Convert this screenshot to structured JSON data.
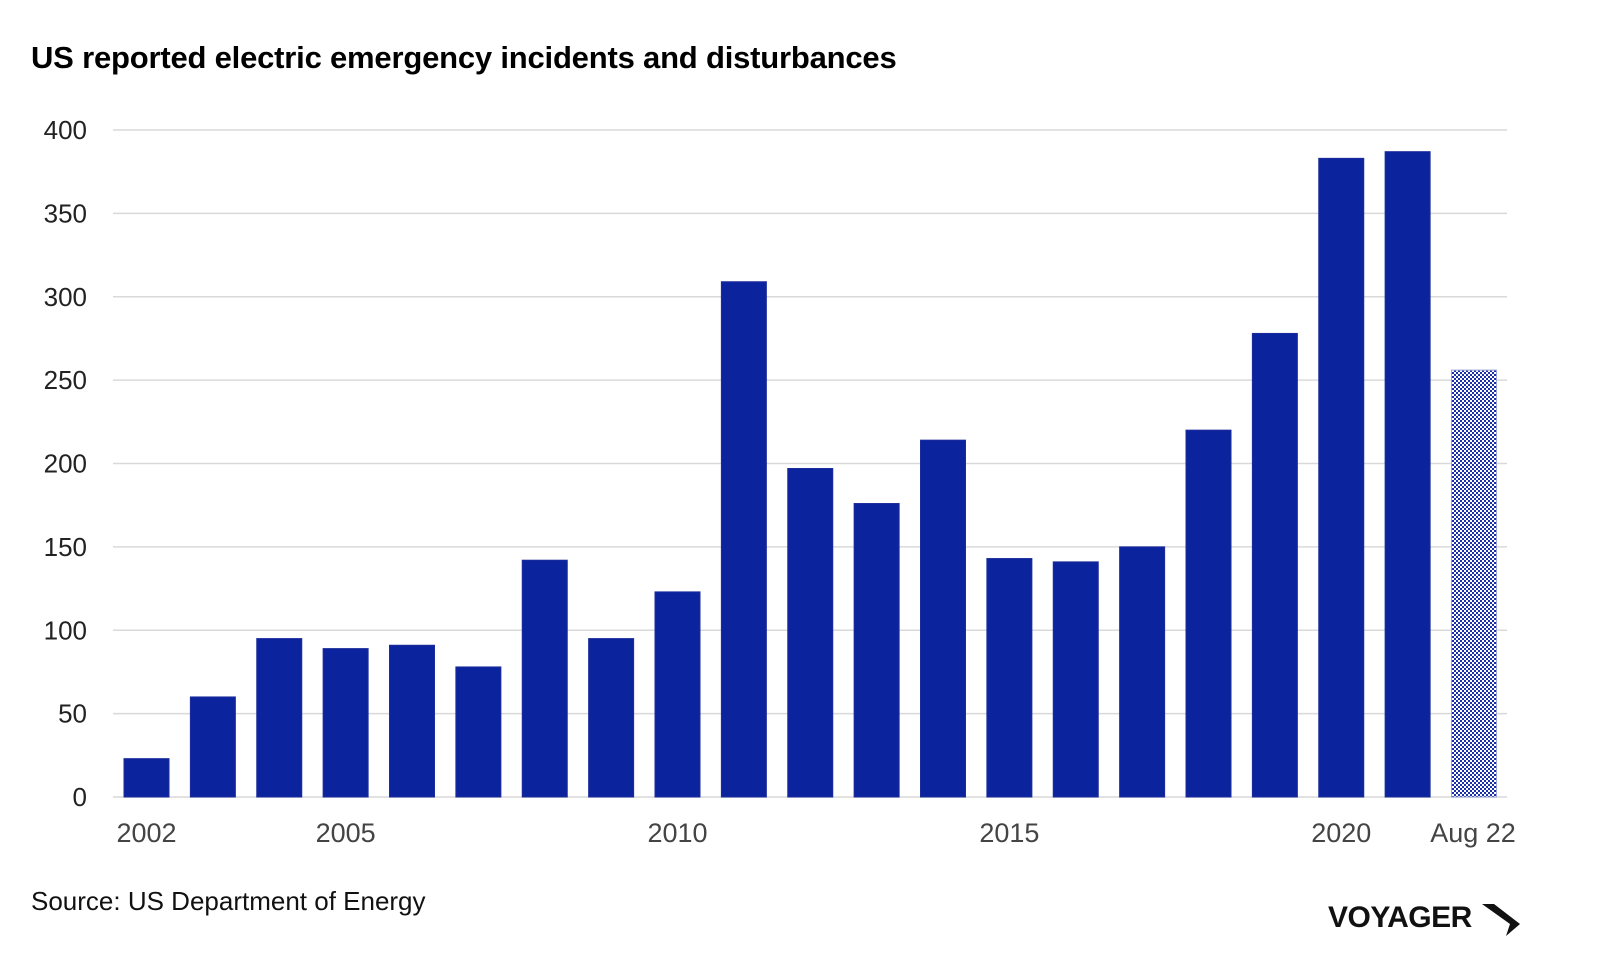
{
  "chart_data": {
    "type": "bar",
    "title": "US reported electric emergency incidents and disturbances",
    "xlabel": "",
    "ylabel": "",
    "ylim": [
      0,
      400
    ],
    "yticks": [
      0,
      50,
      100,
      150,
      200,
      250,
      300,
      350,
      400
    ],
    "grid": true,
    "legend": "none",
    "categories": [
      "2002",
      "2003",
      "2004",
      "2005",
      "2006",
      "2007",
      "2008",
      "2009",
      "2010",
      "2011",
      "2012",
      "2013",
      "2014",
      "2015",
      "2016",
      "2017",
      "2018",
      "2019",
      "2020",
      "2021",
      "Aug 22"
    ],
    "x_tick_labels": [
      {
        "category": "2002",
        "label": "2002"
      },
      {
        "category": "2005",
        "label": "2005"
      },
      {
        "category": "2010",
        "label": "2010"
      },
      {
        "category": "2015",
        "label": "2015"
      },
      {
        "category": "2020",
        "label": "2020"
      },
      {
        "category": "Aug 22",
        "label": "Aug 22"
      }
    ],
    "values": [
      23,
      60,
      95,
      89,
      91,
      78,
      142,
      95,
      123,
      309,
      197,
      176,
      214,
      143,
      141,
      150,
      220,
      278,
      383,
      387,
      256
    ],
    "partial_period": [
      "Aug 22"
    ],
    "colors": {
      "bar": "#0c239e",
      "bar_partial_pattern": "#1a2fa8",
      "grid": "#d9d9d9"
    }
  },
  "footer": {
    "source": "Source: US Department of Energy",
    "brand": "VOYAGER",
    "brand_icon": "voyager-arrow-icon"
  }
}
